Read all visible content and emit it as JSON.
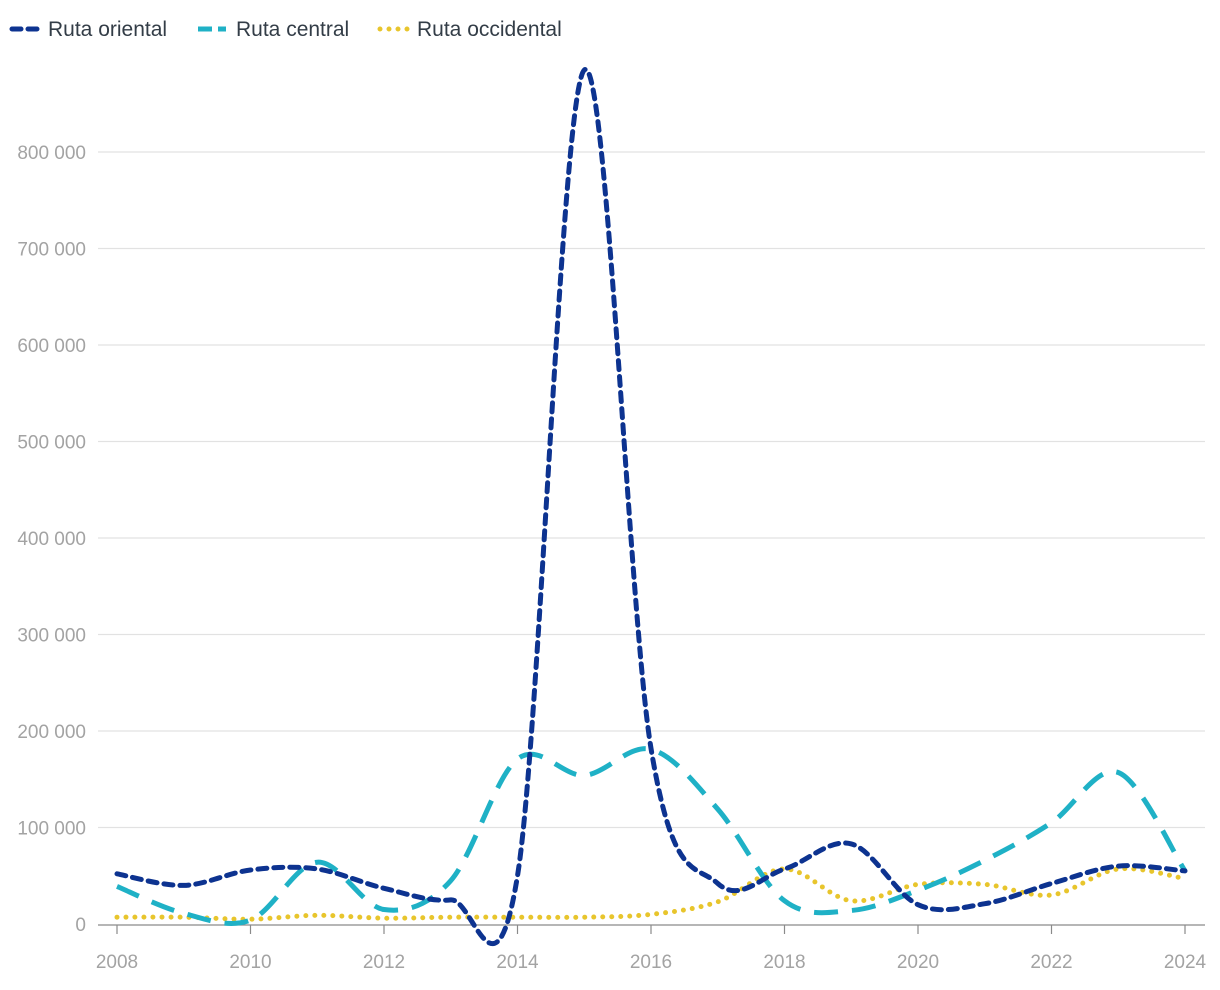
{
  "chart_data": {
    "type": "line",
    "x": [
      2008,
      2009,
      2010,
      2011,
      2012,
      2013,
      2014,
      2015,
      2016,
      2017,
      2018,
      2019,
      2020,
      2021,
      2022,
      2023,
      2024
    ],
    "series": [
      {
        "name": "Ruta oriental",
        "color": "#0d3390",
        "dash": "dotted-heavy",
        "values": [
          52000,
          40000,
          56000,
          57000,
          37000,
          25000,
          50000,
          885000,
          182000,
          42000,
          57000,
          83000,
          20000,
          21000,
          42000,
          60000,
          55000
        ]
      },
      {
        "name": "Ruta central",
        "color": "#1fb1c6",
        "dash": "long-dash",
        "values": [
          39000,
          11000,
          4000,
          64000,
          15000,
          45000,
          171000,
          154000,
          181000,
          119000,
          24000,
          14000,
          35000,
          66000,
          105000,
          157000,
          55000
        ]
      },
      {
        "name": "Ruta occidental",
        "color": "#e8c52c",
        "dash": "dots",
        "values": [
          7000,
          7000,
          5000,
          9000,
          6000,
          7000,
          7000,
          7000,
          10000,
          23000,
          57000,
          24000,
          41000,
          41000,
          30000,
          57000,
          47000
        ]
      }
    ],
    "x_ticks": [
      "2008",
      "2010",
      "2012",
      "2014",
      "2016",
      "2018",
      "2020",
      "2022",
      "2024"
    ],
    "y_ticks": [
      "0",
      "100 000",
      "200 000",
      "300 000",
      "400 000",
      "500 000",
      "600 000",
      "700 000",
      "800 000"
    ],
    "ylim": [
      0,
      900000
    ],
    "xlim": [
      2008,
      2024
    ],
    "grid": true,
    "legend_position": "top-left",
    "title": "",
    "xlabel": "",
    "ylabel": ""
  }
}
